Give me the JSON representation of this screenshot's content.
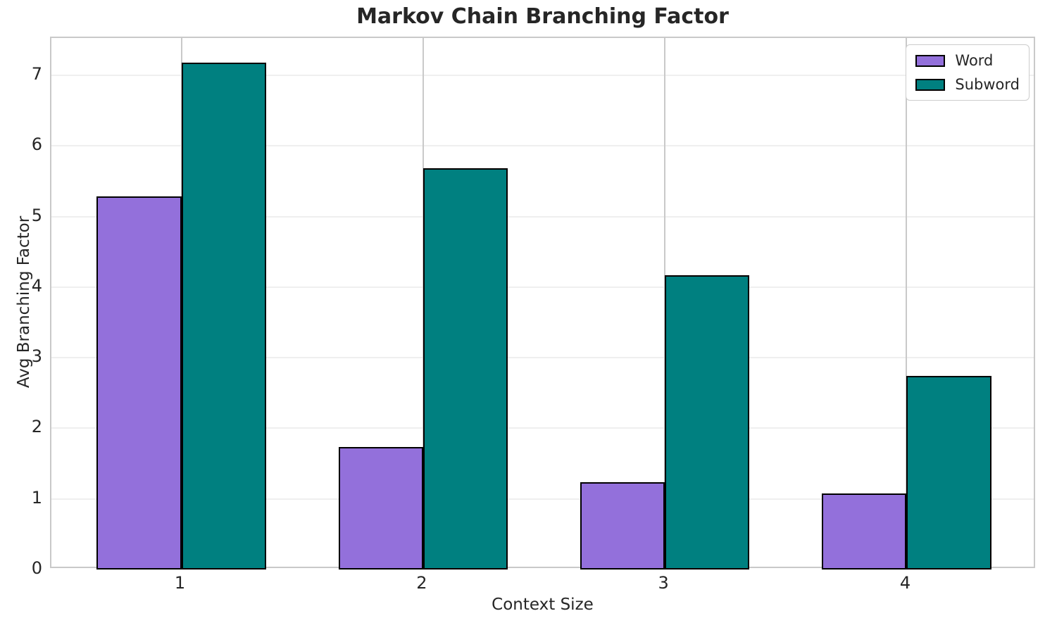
{
  "chart_data": {
    "type": "bar",
    "title": "Markov Chain Branching Factor",
    "xlabel": "Context Size",
    "ylabel": "Avg Branching Factor",
    "categories": [
      "1",
      "2",
      "3",
      "4"
    ],
    "series": [
      {
        "name": "Word",
        "color": "#9370DB",
        "values": [
          5.29,
          1.74,
          1.24,
          1.08
        ]
      },
      {
        "name": "Subword",
        "color": "#008080",
        "values": [
          7.18,
          5.68,
          4.17,
          2.74
        ]
      }
    ],
    "ylim": [
      0,
      7.53
    ],
    "yticks": [
      0,
      1,
      2,
      3,
      4,
      5,
      6,
      7
    ],
    "xlim": [
      -0.5375,
      3.5375
    ],
    "bar_width": 0.35,
    "bar_edge_color": "#000000",
    "grid": true,
    "hgrid_color": "#efefef",
    "vgrid_color": "#c9c9c9",
    "legend_position": "upper right",
    "text_color": "#262626",
    "background_color": "#ffffff"
  }
}
